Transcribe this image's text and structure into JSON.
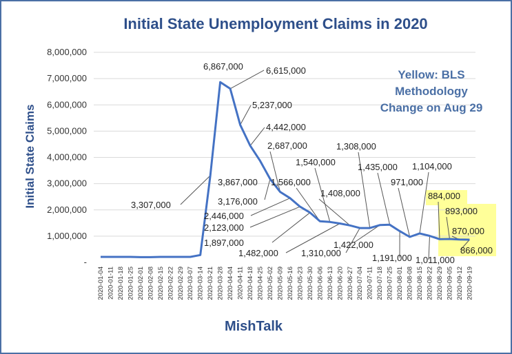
{
  "chart_data": {
    "type": "line",
    "title": "Initial State Unemployment Claims in 2020",
    "ylabel": "Initial  State Claims",
    "xlabel": "",
    "source_label": "MishTalk",
    "annotation": [
      "Yellow: BLS",
      "Methodology",
      "Change on Aug 29"
    ],
    "ylim": [
      0,
      8000000
    ],
    "yticks": [
      "-",
      "1,000,000",
      "2,000,000",
      "3,000,000",
      "4,000,000",
      "5,000,000",
      "6,000,000",
      "7,000,000",
      "8,000,000"
    ],
    "grid": true,
    "line_color": "#4472c4",
    "highlight_color": "#ffff99",
    "x": [
      "2020-01-04",
      "2020-01-11",
      "2020-01-18",
      "2020-01-25",
      "2020-02-01",
      "2020-02-08",
      "2020-02-15",
      "2020-02-22",
      "2020-02-29",
      "2020-03-07",
      "2020-03-14",
      "2020-03-21",
      "2020-03-28",
      "2020-04-04",
      "2020-04-11",
      "2020-04-18",
      "2020-04-25",
      "2020-05-02",
      "2020-05-09",
      "2020-05-16",
      "2020-05-23",
      "2020-05-30",
      "2020-06-06",
      "2020-06-13",
      "2020-06-20",
      "2020-06-27",
      "2020-07-04",
      "2020-07-11",
      "2020-07-18",
      "2020-07-25",
      "2020-08-01",
      "2020-08-08",
      "2020-08-15",
      "2020-08-22",
      "2020-08-29",
      "2020-09-05",
      "2020-09-12",
      "2020-09-19"
    ],
    "series": [
      {
        "values": [
          210000,
          210000,
          210000,
          210000,
          200000,
          200000,
          210000,
          210000,
          210000,
          210000,
          280000,
          3307000,
          6867000,
          6615000,
          5237000,
          4442000,
          3867000,
          3176000,
          2687000,
          2446000,
          2123000,
          1897000,
          1566000,
          1540000,
          1482000,
          1408000,
          1310000,
          1308000,
          1422000,
          1435000,
          1191000,
          971000,
          1104000,
          1011000,
          884000,
          893000,
          870000,
          866000
        ]
      }
    ],
    "data_labels": [
      {
        "index": 11,
        "text": "3,307,000"
      },
      {
        "index": 12,
        "text": "6,867,000"
      },
      {
        "index": 13,
        "text": "6,615,000"
      },
      {
        "index": 14,
        "text": "5,237,000"
      },
      {
        "index": 15,
        "text": "4,442,000"
      },
      {
        "index": 16,
        "text": "3,867,000"
      },
      {
        "index": 17,
        "text": "3,176,000"
      },
      {
        "index": 18,
        "text": "2,687,000"
      },
      {
        "index": 19,
        "text": "2,446,000"
      },
      {
        "index": 20,
        "text": "2,123,000"
      },
      {
        "index": 21,
        "text": "1,897,000"
      },
      {
        "index": 22,
        "text": "1,566,000"
      },
      {
        "index": 23,
        "text": "1,540,000"
      },
      {
        "index": 24,
        "text": "1,482,000"
      },
      {
        "index": 25,
        "text": "1,408,000"
      },
      {
        "index": 26,
        "text": "1,310,000"
      },
      {
        "index": 27,
        "text": "1,308,000"
      },
      {
        "index": 28,
        "text": "1,422,000"
      },
      {
        "index": 29,
        "text": "1,435,000"
      },
      {
        "index": 30,
        "text": "1,191,000"
      },
      {
        "index": 31,
        "text": "971,000"
      },
      {
        "index": 32,
        "text": "1,104,000"
      },
      {
        "index": 33,
        "text": "1,011,000"
      },
      {
        "index": 34,
        "text": "884,000"
      },
      {
        "index": 35,
        "text": "893,000"
      },
      {
        "index": 36,
        "text": "870,000"
      },
      {
        "index": 37,
        "text": "866,000"
      }
    ]
  }
}
